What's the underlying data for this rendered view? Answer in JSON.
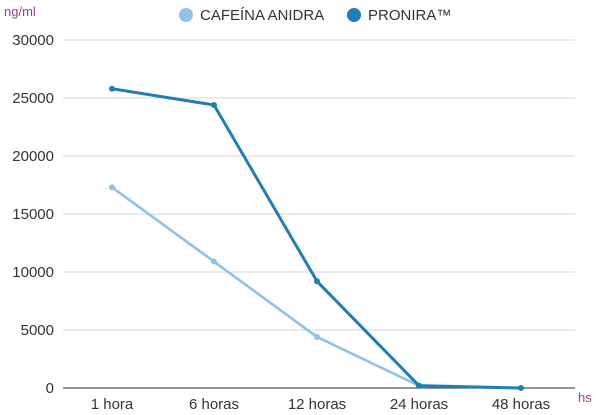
{
  "chart_data": {
    "type": "line",
    "ylabel": "ng/ml",
    "xlabel": "hs",
    "categories": [
      "1 hora",
      "6 horas",
      "12 horas",
      "24 horas",
      "48 horas"
    ],
    "ylim": [
      0,
      30000
    ],
    "yticks": [
      0,
      5000,
      10000,
      15000,
      20000,
      25000,
      30000
    ],
    "grid": true,
    "legend_position": "top-center",
    "series": [
      {
        "name": "CAFEÍNA ANIDRA",
        "color": "#8ec3e6",
        "values": [
          17300,
          10900,
          4400,
          200,
          null
        ]
      },
      {
        "name": "PRONIRA™",
        "color": "#1d7fb6",
        "values": [
          25800,
          24400,
          9200,
          200,
          0
        ]
      }
    ]
  }
}
